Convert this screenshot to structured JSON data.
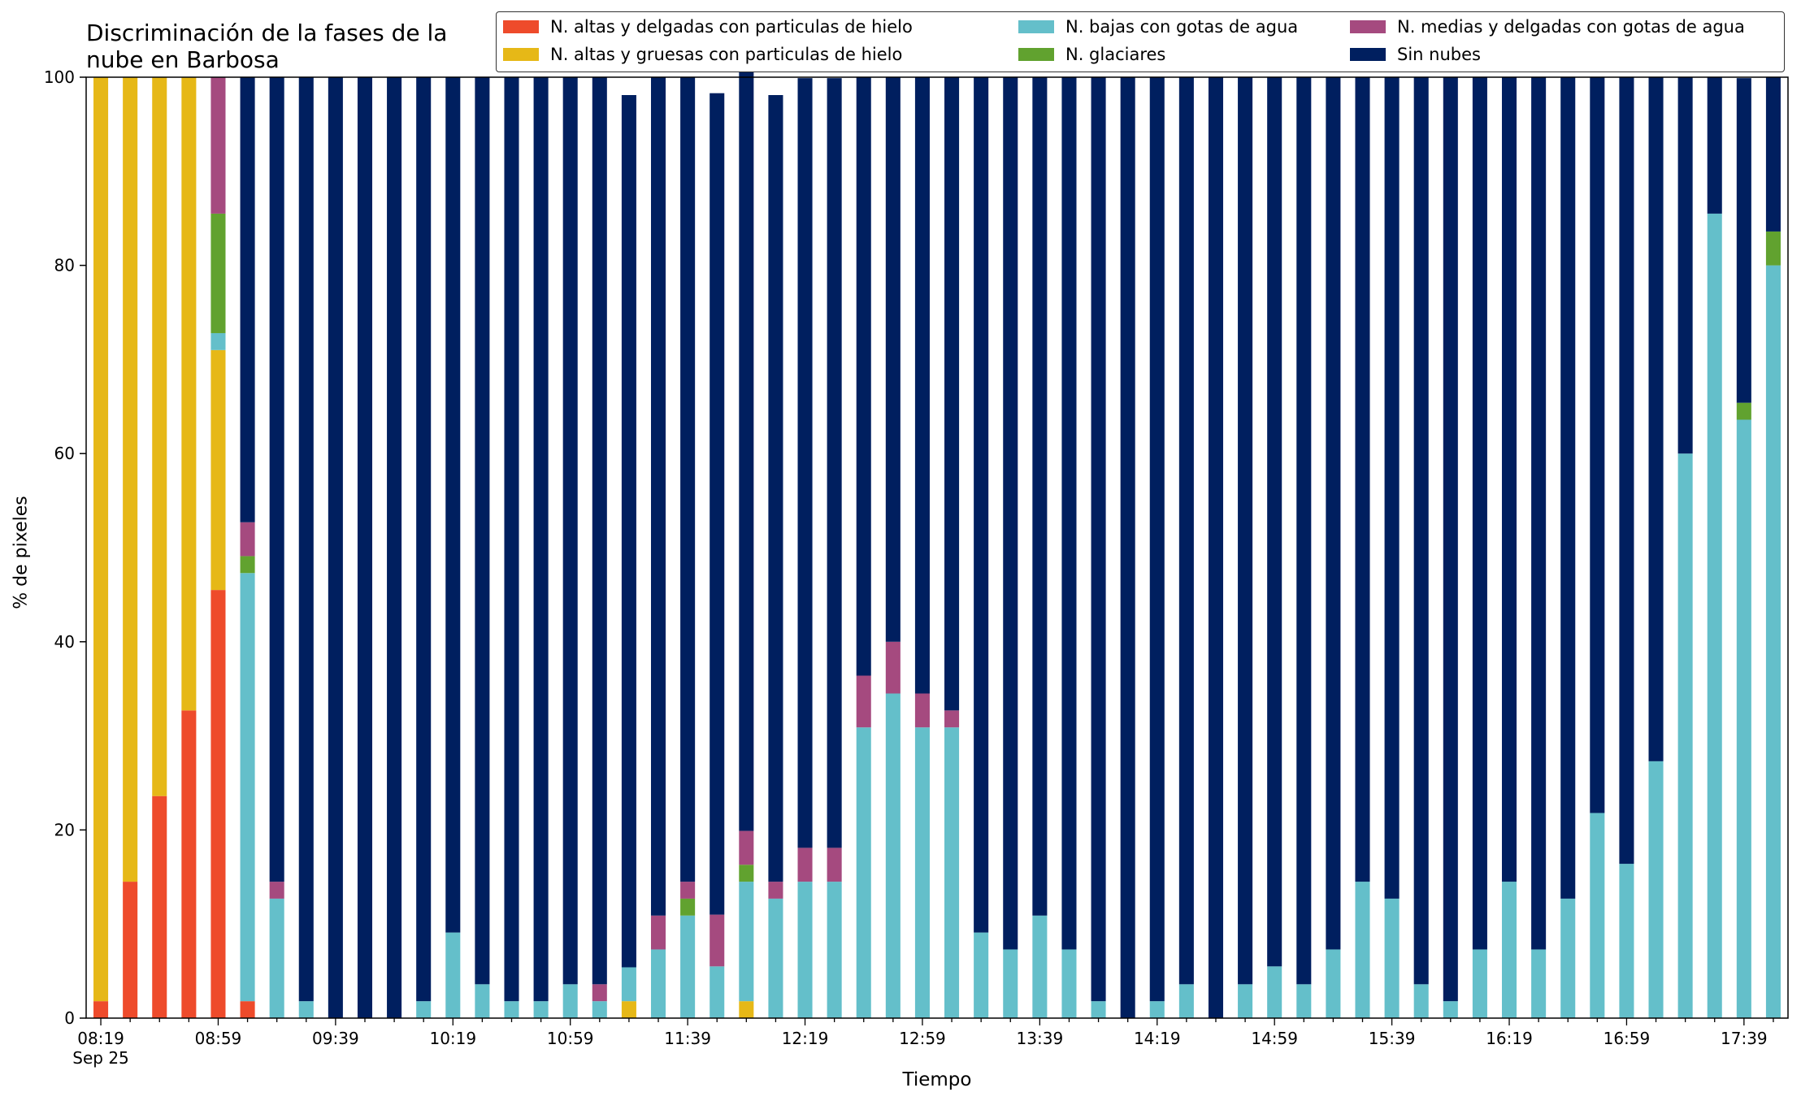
{
  "chart_data": {
    "type": "bar",
    "stacked": true,
    "title": "Discriminación de la fases de la\nnube en Barbosa",
    "xlabel": "Tiempo",
    "ylabel": "% de pixeles",
    "ylim": [
      0,
      100
    ],
    "yticks": [
      0,
      20,
      40,
      60,
      80,
      100
    ],
    "xtick_labels": [
      "08:19",
      "08:59",
      "09:39",
      "10:19",
      "10:59",
      "11:39",
      "12:19",
      "12:59",
      "13:39",
      "14:19",
      "14:59",
      "15:39",
      "16:19",
      "16:59",
      "17:39"
    ],
    "xtick_sublabel": "Sep 25",
    "legend_position": "top-right",
    "categories": [
      "08:19",
      "08:29",
      "08:39",
      "08:49",
      "08:59",
      "09:09",
      "09:19",
      "09:29",
      "09:39",
      "09:49",
      "09:59",
      "10:09",
      "10:19",
      "10:29",
      "10:39",
      "10:49",
      "10:59",
      "11:09",
      "11:19",
      "11:29",
      "11:39",
      "11:49",
      "11:59",
      "12:09",
      "12:19",
      "12:29",
      "12:39",
      "12:49",
      "12:59",
      "13:09",
      "13:19",
      "13:29",
      "13:39",
      "13:49",
      "13:59",
      "14:09",
      "14:19",
      "14:29",
      "14:39",
      "14:49",
      "14:59",
      "15:09",
      "15:19",
      "15:29",
      "15:39",
      "15:49",
      "15:59",
      "16:09",
      "16:19",
      "16:29",
      "16:39",
      "16:49",
      "16:59",
      "17:09",
      "17:19",
      "17:29",
      "17:39",
      "17:49"
    ],
    "series": [
      {
        "name": "N. altas y delgadas con particulas de hielo",
        "color": "#ee4b2b",
        "values": [
          1.8,
          14.5,
          23.6,
          32.7,
          45.5,
          1.8,
          0,
          0,
          0,
          0,
          0,
          0,
          0,
          0,
          0,
          0,
          0,
          0,
          0,
          0,
          0,
          0,
          0,
          0,
          0,
          0,
          0,
          0,
          0,
          0,
          0,
          0,
          0,
          0,
          0,
          0,
          0,
          0,
          0,
          0,
          0,
          0,
          0,
          0,
          0,
          0,
          0,
          0,
          0,
          0,
          0,
          0,
          0,
          0,
          0,
          0,
          0,
          0
        ]
      },
      {
        "name": "N. altas y gruesas con particulas de hielo",
        "color": "#e6b817",
        "values": [
          98.2,
          85.5,
          76.4,
          67.3,
          25.5,
          0,
          0,
          0,
          0,
          0,
          0,
          0,
          0,
          0,
          0,
          0,
          0,
          0,
          1.8,
          0,
          0,
          0,
          1.8,
          0,
          0,
          0,
          0,
          0,
          0,
          0,
          0,
          0,
          0,
          0,
          0,
          0,
          0,
          0,
          0,
          0,
          0,
          0,
          0,
          0,
          0,
          0,
          0,
          0,
          0,
          0,
          0,
          0,
          0,
          0,
          0,
          0,
          0,
          0
        ]
      },
      {
        "name": "N. bajas con gotas de agua",
        "color": "#64bfca",
        "values": [
          0,
          0,
          0,
          0,
          1.8,
          45.5,
          12.7,
          1.8,
          0,
          0,
          0,
          1.8,
          9.1,
          3.6,
          1.8,
          1.8,
          3.6,
          1.8,
          3.6,
          7.3,
          10.9,
          5.5,
          12.7,
          12.7,
          14.5,
          14.5,
          30.9,
          34.5,
          30.9,
          30.9,
          9.1,
          7.3,
          10.9,
          7.3,
          1.8,
          0,
          1.8,
          3.6,
          0,
          3.6,
          5.5,
          3.6,
          7.3,
          14.5,
          12.7,
          3.6,
          1.8,
          7.3,
          14.5,
          7.3,
          12.7,
          21.8,
          16.4,
          27.3,
          60.0,
          85.5,
          63.6,
          80.0
        ]
      },
      {
        "name": "N. glaciares",
        "color": "#61a22f",
        "values": [
          0,
          0,
          0,
          0,
          12.7,
          1.8,
          0,
          0,
          0,
          0,
          0,
          0,
          0,
          0,
          0,
          0,
          0,
          0,
          0,
          0,
          1.8,
          0,
          1.8,
          0,
          0,
          0,
          0,
          0,
          0,
          0,
          0,
          0,
          0,
          0,
          0,
          0,
          0,
          0,
          0,
          0,
          0,
          0,
          0,
          0,
          0,
          0,
          0,
          0,
          0,
          0,
          0,
          0,
          0,
          0,
          0,
          0,
          1.8,
          3.6
        ]
      },
      {
        "name": "N. medias y delgadas con gotas de agua",
        "color": "#a54a7f",
        "values": [
          0,
          0,
          0,
          0,
          14.5,
          3.6,
          1.8,
          0,
          0,
          0,
          0,
          0,
          0,
          0,
          0,
          0,
          0,
          1.8,
          0,
          3.6,
          1.8,
          5.5,
          3.6,
          1.8,
          3.6,
          3.6,
          5.5,
          5.5,
          3.6,
          1.8,
          0,
          0,
          0,
          0,
          0,
          0,
          0,
          0,
          0,
          0,
          0,
          0,
          0,
          0,
          0,
          0,
          0,
          0,
          0,
          0,
          0,
          0,
          0,
          0,
          0,
          0,
          0,
          0
        ]
      },
      {
        "name": "Sin nubes",
        "color": "#001f5f",
        "values": [
          0,
          0,
          0,
          0,
          0,
          47.3,
          85.5,
          98.2,
          100,
          100,
          100,
          98.2,
          90.9,
          96.4,
          98.2,
          98.2,
          96.4,
          96.4,
          92.7,
          89.1,
          85.5,
          87.3,
          81.8,
          83.6,
          81.8,
          81.8,
          63.6,
          60.0,
          65.5,
          67.3,
          90.9,
          92.7,
          89.1,
          92.7,
          98.2,
          100,
          98.2,
          96.4,
          100,
          96.4,
          94.5,
          96.4,
          92.7,
          85.5,
          87.3,
          96.4,
          98.2,
          92.7,
          85.5,
          92.7,
          87.3,
          78.2,
          83.6,
          72.7,
          40.0,
          14.5,
          34.5,
          16.4
        ]
      }
    ]
  }
}
